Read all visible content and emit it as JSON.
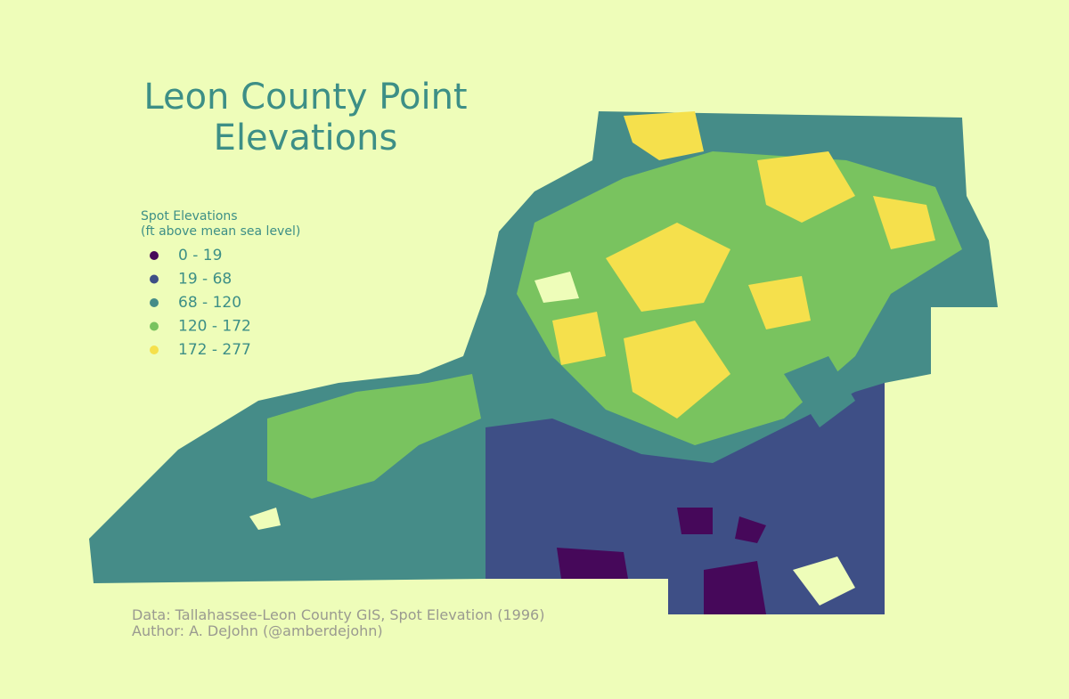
{
  "title": [
    "Leon County Point",
    "Elevations"
  ],
  "legend": {
    "title": [
      "Spot Elevations",
      "(ft above mean sea level)"
    ],
    "items": [
      {
        "label": "0 - 19",
        "color": "#46085a"
      },
      {
        "label": "19 - 68",
        "color": "#3e4f86"
      },
      {
        "label": "68 - 120",
        "color": "#458c88"
      },
      {
        "label": "120 - 172",
        "color": "#79c35f"
      },
      {
        "label": "172 - 277",
        "color": "#f5e04c"
      }
    ]
  },
  "credits": [
    "Data: Tallahassee-Leon County GIS, Spot Elevation (1996)",
    "Author: A. DeJohn (@amberdejohn)"
  ]
}
